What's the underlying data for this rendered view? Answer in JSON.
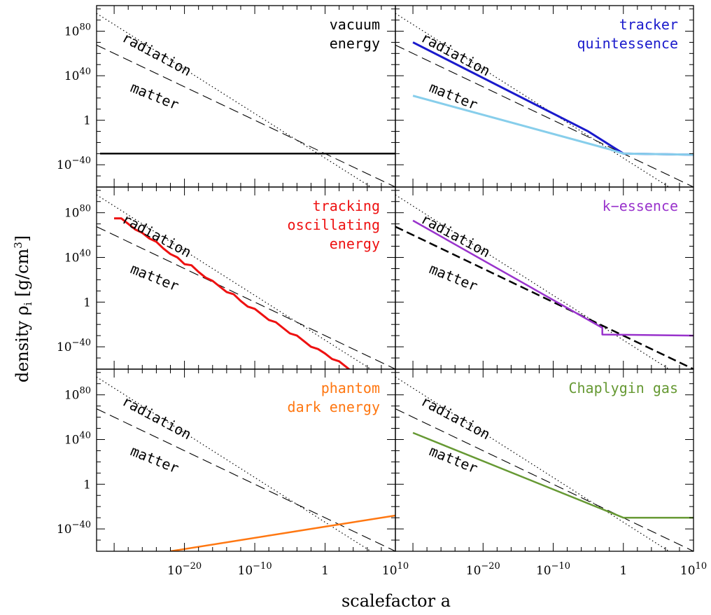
{
  "chart_data": {
    "type": "line",
    "layout": "3x2 grid of panels sharing axes",
    "xlabel": "scalefactor a",
    "ylabel": "density ρ_i [g/cm³]",
    "x_scale": "log",
    "y_scale": "log",
    "xlim": [
      "1e-30",
      "1e10"
    ],
    "ylim": [
      "1e-60",
      "1e100"
    ],
    "x_tick_labels": [
      {
        "exp": -20,
        "text": "10",
        "sup": "−20"
      },
      {
        "exp": -10,
        "text": "10",
        "sup": "−10"
      },
      {
        "exp": 0,
        "text": "1",
        "sup": ""
      },
      {
        "exp": 10,
        "text": "10",
        "sup": "10"
      }
    ],
    "y_tick_labels": [
      {
        "exp": 80,
        "text": "10",
        "sup": "80"
      },
      {
        "exp": 40,
        "text": "10",
        "sup": "40"
      },
      {
        "exp": 0,
        "text": "1",
        "sup": ""
      },
      {
        "exp": -40,
        "text": "10",
        "sup": "−40"
      }
    ],
    "curve_labels": {
      "radiation": "radiation",
      "matter": "matter"
    },
    "reference_lines": {
      "radiation": {
        "style": "dotted",
        "log_rho_at_a1": -34,
        "slope": -4
      },
      "matter": {
        "style": "dashed",
        "log_rho_at_a1": -30,
        "slope": -3
      }
    },
    "panels": [
      {
        "id": "vacuum-energy",
        "title_lines": [
          "vacuum",
          "energy"
        ],
        "color": "#000000",
        "series": [
          {
            "color": "#000000",
            "width": 2.5,
            "points": [
              [
                -32,
                -30
              ],
              [
                10,
                -30
              ]
            ]
          }
        ]
      },
      {
        "id": "tracker-quintessence",
        "title_lines": [
          "tracker",
          "quintessence"
        ],
        "color": "#1a1acc",
        "series": [
          {
            "color": "#1a1acc",
            "width": 3,
            "points": [
              [
                -30,
                70
              ],
              [
                -5,
                -10
              ],
              [
                0,
                -30
              ],
              [
                10,
                -31
              ]
            ]
          },
          {
            "color": "#87ceeb",
            "width": 3,
            "points": [
              [
                -30,
                22
              ],
              [
                -2,
                -26
              ],
              [
                0,
                -30
              ],
              [
                10,
                -31
              ]
            ]
          }
        ]
      },
      {
        "id": "tracking-oscillating-energy",
        "title_lines": [
          "tracking",
          "oscillating",
          "energy"
        ],
        "color": "#ee1111",
        "series": [
          {
            "color": "#000000",
            "width": 1.5,
            "points": [
              [
                -30,
                75
              ],
              [
                -29,
                75
              ],
              [
                -28,
                70
              ],
              [
                -27,
                65
              ],
              [
                -26,
                62
              ],
              [
                -25,
                57
              ],
              [
                -24,
                54
              ],
              [
                -23,
                48
              ],
              [
                -22,
                43
              ],
              [
                -21,
                40
              ],
              [
                -20,
                34
              ],
              [
                -19,
                33
              ],
              [
                -18,
                27
              ],
              [
                -17,
                22
              ],
              [
                -16,
                19
              ],
              [
                -15,
                14
              ],
              [
                -14,
                9
              ],
              [
                -13,
                7
              ],
              [
                -12,
                1
              ],
              [
                -11,
                -4
              ],
              [
                -10,
                -6
              ],
              [
                -9,
                -11
              ],
              [
                -8,
                -16
              ],
              [
                -7,
                -18
              ],
              [
                -6,
                -23
              ],
              [
                -5,
                -28
              ],
              [
                -4,
                -30
              ],
              [
                -3,
                -35
              ],
              [
                -2,
                -40
              ],
              [
                -1,
                -42
              ],
              [
                0,
                -46
              ],
              [
                1,
                -51
              ],
              [
                2,
                -53
              ],
              [
                3,
                -58
              ],
              [
                4,
                -63
              ],
              [
                5,
                -64
              ]
            ]
          },
          {
            "color": "#ee1111",
            "width": 3,
            "points": [
              [
                -30,
                75
              ],
              [
                -29,
                75
              ],
              [
                -28,
                70
              ],
              [
                -27,
                65
              ],
              [
                -26,
                62
              ],
              [
                -25,
                57
              ],
              [
                -24,
                54
              ],
              [
                -23,
                48
              ],
              [
                -22,
                43
              ],
              [
                -21,
                40
              ],
              [
                -20,
                34
              ],
              [
                -19,
                33
              ],
              [
                -18,
                27
              ],
              [
                -17,
                22
              ],
              [
                -16,
                19
              ],
              [
                -15,
                14
              ],
              [
                -14,
                9
              ],
              [
                -13,
                7
              ],
              [
                -12,
                1
              ],
              [
                -11,
                -4
              ],
              [
                -10,
                -6
              ],
              [
                -9,
                -11
              ],
              [
                -8,
                -16
              ],
              [
                -7,
                -18
              ],
              [
                -6,
                -23
              ],
              [
                -5,
                -28
              ],
              [
                -4,
                -30
              ],
              [
                -3,
                -35
              ],
              [
                -2,
                -40
              ],
              [
                -1,
                -42
              ],
              [
                0,
                -46
              ],
              [
                1,
                -51
              ],
              [
                2,
                -53
              ],
              [
                3,
                -58
              ],
              [
                4,
                -63
              ],
              [
                5,
                -64
              ]
            ]
          }
        ]
      },
      {
        "id": "k-essence",
        "title_lines": [
          "k−essence"
        ],
        "color": "#9933cc",
        "matter_bold": true,
        "series": [
          {
            "color": "#9933cc",
            "width": 2.5,
            "points": [
              [
                -30,
                73
              ],
              [
                -3,
                -23
              ],
              [
                -3,
                -29
              ],
              [
                10,
                -30
              ]
            ]
          }
        ]
      },
      {
        "id": "phantom-dark-energy",
        "title_lines": [
          "phantom",
          "dark energy"
        ],
        "color": "#ff7711",
        "series": [
          {
            "color": "#ff7711",
            "width": 2.5,
            "points": [
              [
                -22,
                -60
              ],
              [
                0,
                -38
              ],
              [
                10,
                -28
              ]
            ]
          }
        ]
      },
      {
        "id": "chaplygin-gas",
        "title_lines": [
          "Chaplygin gas"
        ],
        "color": "#669933",
        "series": [
          {
            "color": "#669933",
            "width": 2.5,
            "points": [
              [
                -30,
                46
              ],
              [
                0,
                -30
              ],
              [
                10,
                -30
              ]
            ]
          }
        ]
      }
    ]
  }
}
